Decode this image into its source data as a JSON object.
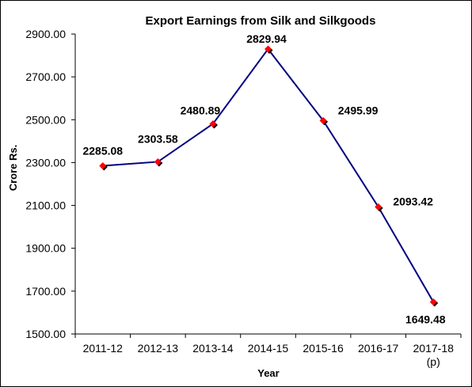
{
  "chart_data": {
    "type": "line",
    "title": "Export Earnings from Silk and Silkgoods",
    "xlabel": "Year",
    "ylabel": "Crore Rs.",
    "categories": [
      "2011-12",
      "2012-13",
      "2013-14",
      "2014-15",
      "2015-16",
      "2016-17",
      "2017-18\n(p)"
    ],
    "values": [
      2285.08,
      2303.58,
      2480.89,
      2829.94,
      2495.99,
      2093.42,
      1649.48
    ],
    "data_labels": [
      "2285.08",
      "2303.58",
      "2480.89",
      "2829.94",
      "2495.99",
      "2093.42",
      "1649.48"
    ],
    "ylim": [
      1500,
      2900
    ],
    "yticks": [
      "1500.00",
      "1700.00",
      "1900.00",
      "2100.00",
      "2300.00",
      "2500.00",
      "2700.00",
      "2900.00"
    ],
    "grid": false,
    "line_color": "#000080",
    "marker_color": "#ff0000",
    "marker_shadow_color": "#000000"
  }
}
